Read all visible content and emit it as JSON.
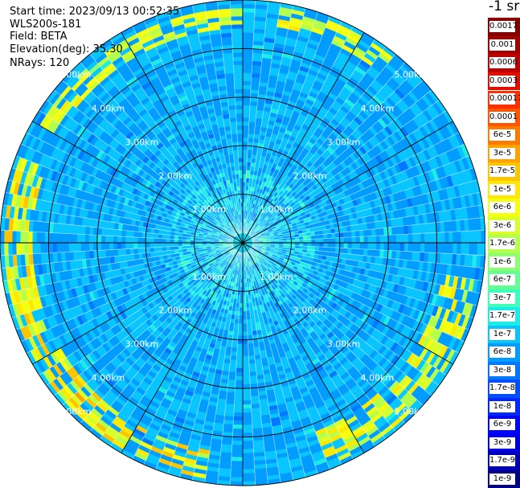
{
  "header": {
    "start_time": "Start time: 2023/09/13 00:52:35",
    "device": "WLS200s-181",
    "field": "Field: BETA",
    "elevation": "Elevation(deg): 35.30",
    "nrays": "NRays: 120"
  },
  "unit_label": "-1 sr",
  "chart_data": {
    "type": "heatmap",
    "subtype": "ppi-polar",
    "field": "BETA",
    "n_rays": 120,
    "max_range_km": 5,
    "range_rings_km": [
      1,
      2,
      3,
      4,
      5
    ],
    "ring_labels": [
      "1.00km",
      "2.00km",
      "3.00km",
      "4.00km",
      "5.00km"
    ],
    "radial_lines_deg": [
      0,
      30,
      60,
      90,
      120,
      150
    ],
    "grid": true,
    "colorbar_position": "right",
    "colorbar_ticks": [
      "0.0017",
      "0.001",
      "0.0006",
      "0.0003",
      "0.00017",
      "0.0001",
      "6e-5",
      "3e-5",
      "1.7e-5",
      "1e-5",
      "6e-6",
      "3e-6",
      "1.7e-6",
      "1e-6",
      "6e-7",
      "3e-7",
      "1.7e-7",
      "1e-7",
      "6e-8",
      "3e-8",
      "1.7e-8",
      "1e-8",
      "6e-9",
      "3e-9",
      "1.7e-9",
      "1e-9"
    ],
    "colorbar_colors": [
      "#860000",
      "#a40000",
      "#c20000",
      "#e01000",
      "#ff2f00",
      "#ff5500",
      "#ff7b00",
      "#ffa100",
      "#ffc400",
      "#ffe800",
      "#f5ff10",
      "#d8ff2c",
      "#b3ff4d",
      "#8cff6e",
      "#62ff95",
      "#3cffbc",
      "#1dece6",
      "#08c4ff",
      "#009cff",
      "#0078ff",
      "#0050ff",
      "#0028ff",
      "#0004ff",
      "#0000e0",
      "#0000b4",
      "#000088"
    ],
    "colorbar_scale": "log",
    "background_value": "1e-7 to 6e-8",
    "highlights": [
      {
        "range_km": [
          4.4,
          4.8
        ],
        "azimuth_deg": [
          300,
          360
        ],
        "value": "6e-6 to 1.7e-6"
      },
      {
        "range_km": [
          4.5,
          4.9
        ],
        "azimuth_deg": [
          10,
          40
        ],
        "value": "6e-6 to 1.7e-6"
      },
      {
        "range_km": [
          4.2,
          4.9
        ],
        "azimuth_deg": [
          100,
          160
        ],
        "value": "1e-5 to 1.7e-6"
      },
      {
        "range_km": [
          4.3,
          4.9
        ],
        "azimuth_deg": [
          190,
          290
        ],
        "value": "1.7e-5 to 1.7e-6"
      }
    ]
  }
}
